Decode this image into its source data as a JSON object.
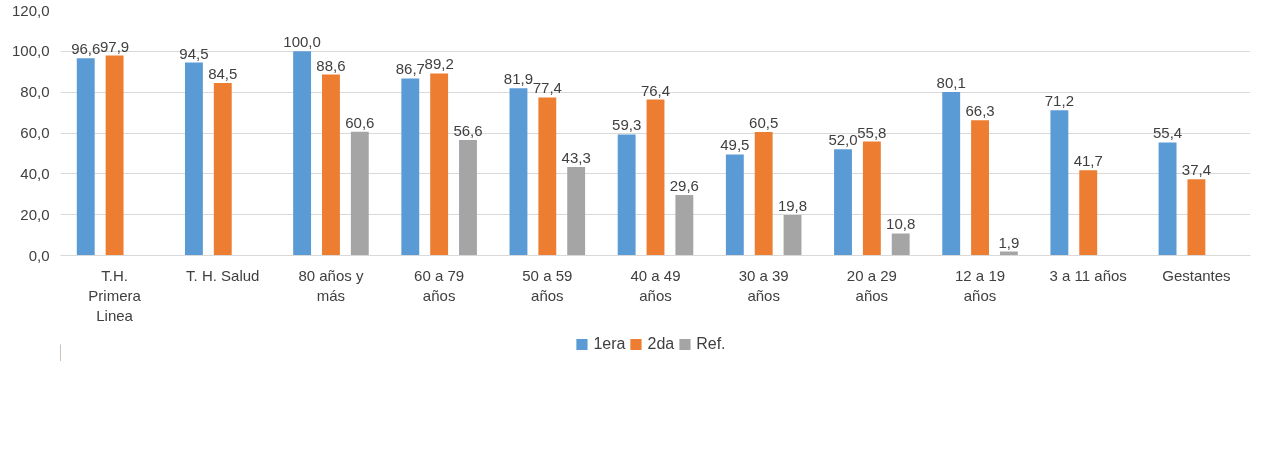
{
  "chart_data": {
    "type": "bar",
    "categories": [
      "T.H. Primera Linea",
      "T. H. Salud",
      "80 años y más",
      "60 a 79 años",
      "50 a 59 años",
      "40 a 49 años",
      "30 a 39 años",
      "20 a 29 años",
      "12 a 19 años",
      "3 a 11 años",
      "Gestantes"
    ],
    "series": [
      {
        "name": "1era",
        "color": "#5b9bd5",
        "values": [
          96.6,
          94.5,
          100.0,
          86.7,
          81.9,
          59.3,
          49.5,
          52.0,
          80.1,
          71.2,
          55.4
        ],
        "value_labels": [
          "96,6",
          "94,5",
          "100,0",
          "86,7",
          "81,9",
          "59,3",
          "49,5",
          "52,0",
          "80,1",
          "71,2",
          "55,4"
        ]
      },
      {
        "name": "2da",
        "color": "#ed7d31",
        "values": [
          97.9,
          84.5,
          88.6,
          89.2,
          77.4,
          76.4,
          60.5,
          55.8,
          66.3,
          41.7,
          37.4
        ],
        "value_labels": [
          "97,9",
          "84,5",
          "88,6",
          "89,2",
          "77,4",
          "76,4",
          "60,5",
          "55,8",
          "66,3",
          "41,7",
          "37,4"
        ]
      },
      {
        "name": "Ref.",
        "color": "#a5a5a5",
        "values": [
          null,
          null,
          60.6,
          56.6,
          43.3,
          29.6,
          19.8,
          10.8,
          1.9,
          null,
          null
        ],
        "value_labels": [
          null,
          null,
          "60,6",
          "56,6",
          "43,3",
          "29,6",
          "19,8",
          "10,8",
          "1,9",
          null,
          null
        ]
      }
    ],
    "ylim": [
      0,
      120
    ],
    "yticks": [
      {
        "value": 0,
        "label": "0,0"
      },
      {
        "value": 20,
        "label": "20,0"
      },
      {
        "value": 40,
        "label": "40,0"
      },
      {
        "value": 60,
        "label": "60,0"
      },
      {
        "value": 80,
        "label": "80,0"
      },
      {
        "value": 100,
        "label": "100,0"
      },
      {
        "value": 120,
        "label": "120,0"
      }
    ],
    "grid": "y",
    "legend": "bottom"
  }
}
